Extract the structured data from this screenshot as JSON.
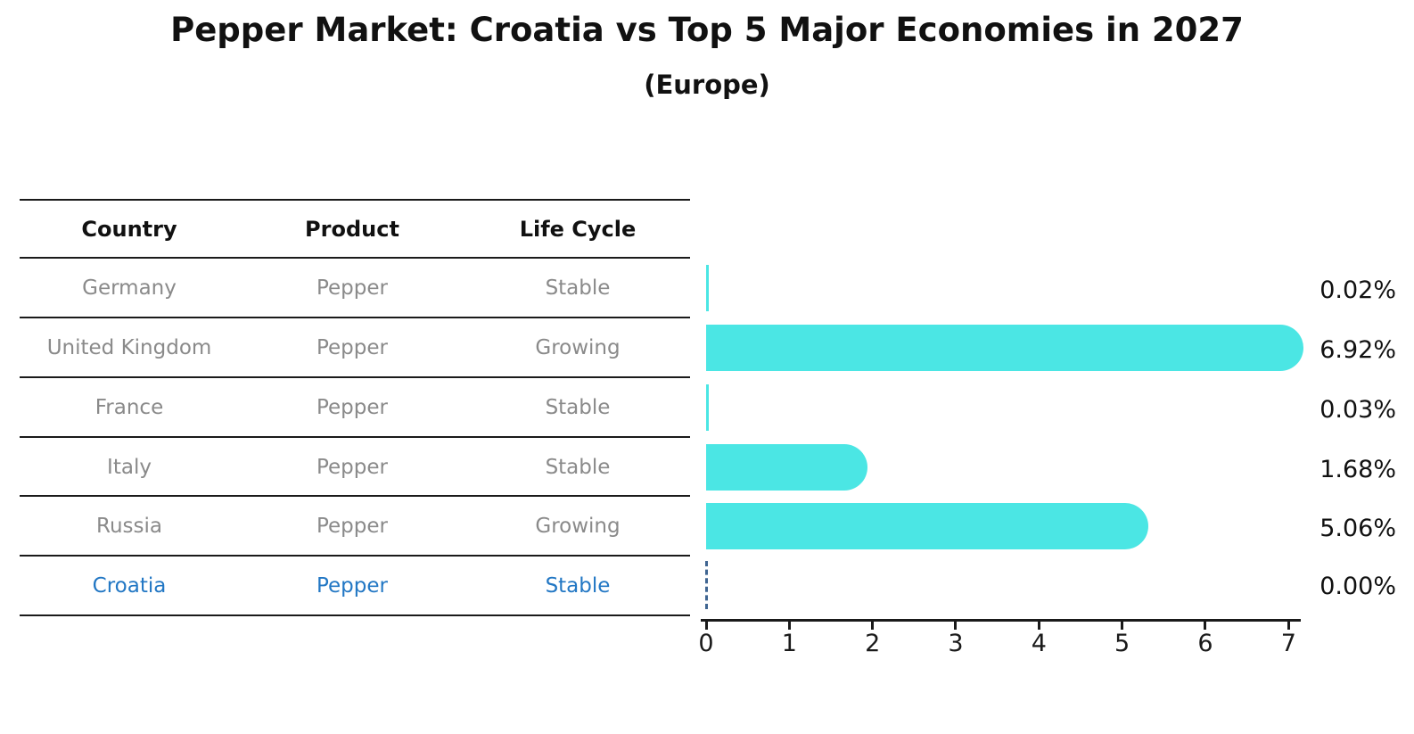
{
  "title": "Pepper Market: Croatia vs Top 5 Major Economies in 2027",
  "subtitle": "(Europe)",
  "colors": {
    "bar_fill": "#4BE6E4",
    "highlight_text": "#2277c4",
    "row_text": "#8a8a8a",
    "header_text": "#111111",
    "zero_marker": "#3f6591",
    "axis": "#1a1a1a"
  },
  "table": {
    "headers": [
      "Country",
      "Product",
      "Life Cycle"
    ],
    "rows": [
      {
        "country": "Germany",
        "product": "Pepper",
        "life_cycle": "Stable",
        "highlighted": false
      },
      {
        "country": "United Kingdom",
        "product": "Pepper",
        "life_cycle": "Growing",
        "highlighted": false
      },
      {
        "country": "France",
        "product": "Pepper",
        "life_cycle": "Stable",
        "highlighted": false
      },
      {
        "country": "Italy",
        "product": "Pepper",
        "life_cycle": "Stable",
        "highlighted": false
      },
      {
        "country": "Russia",
        "product": "Pepper",
        "life_cycle": "Growing",
        "highlighted": false
      },
      {
        "country": "Croatia",
        "product": "Pepper",
        "life_cycle": "Stable",
        "highlighted": true
      }
    ]
  },
  "chart_data": {
    "type": "bar",
    "orientation": "horizontal",
    "title": "Pepper Market: Croatia vs Top 5 Major Economies in 2027 (Europe)",
    "categories": [
      "Germany",
      "United Kingdom",
      "France",
      "Italy",
      "Russia",
      "Croatia"
    ],
    "values": [
      0.02,
      6.92,
      0.03,
      1.68,
      5.06,
      0.0
    ],
    "value_labels": [
      "0.02%",
      "6.92%",
      "0.03%",
      "1.68%",
      "5.06%",
      "0.00%"
    ],
    "xlim": [
      0,
      7
    ],
    "x_ticks": [
      "0",
      "1",
      "2",
      "3",
      "4",
      "5",
      "6",
      "7"
    ],
    "xlabel": "",
    "ylabel": "",
    "grid": false,
    "legend": "none",
    "highlight_category": "Croatia",
    "highlight_marker": "dashed zero line"
  }
}
